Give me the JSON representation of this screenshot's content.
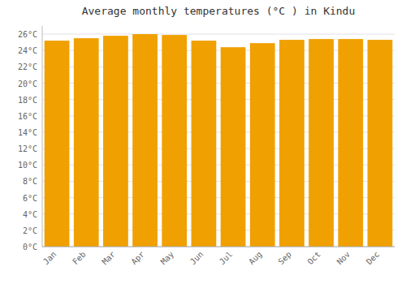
{
  "chart_data": {
    "type": "bar",
    "title": "Average monthly temperatures (°C ) in Kindu",
    "categories": [
      "Jan",
      "Feb",
      "Mar",
      "Apr",
      "May",
      "Jun",
      "Jul",
      "Aug",
      "Sep",
      "Oct",
      "Nov",
      "Dec"
    ],
    "values": [
      25.2,
      25.5,
      25.8,
      26.0,
      25.9,
      25.2,
      24.4,
      24.9,
      25.3,
      25.4,
      25.4,
      25.3
    ],
    "color": "#F0A000",
    "ylim": [
      0,
      27
    ],
    "yticks": [
      {
        "value": 0,
        "label": "0°C"
      },
      {
        "value": 2,
        "label": "2°C"
      },
      {
        "value": 4,
        "label": "4°C"
      },
      {
        "value": 6,
        "label": "6°C"
      },
      {
        "value": 8,
        "label": "8°C"
      },
      {
        "value": 10,
        "label": "10°C"
      },
      {
        "value": 12,
        "label": "12°C"
      },
      {
        "value": 14,
        "label": "14°C"
      },
      {
        "value": 16,
        "label": "16°C"
      },
      {
        "value": 18,
        "label": "18°C"
      },
      {
        "value": 20,
        "label": "20°C"
      },
      {
        "value": 22,
        "label": "22°C"
      },
      {
        "value": 24,
        "label": "24°C"
      },
      {
        "value": 26,
        "label": "26°C"
      }
    ],
    "grid": true
  }
}
